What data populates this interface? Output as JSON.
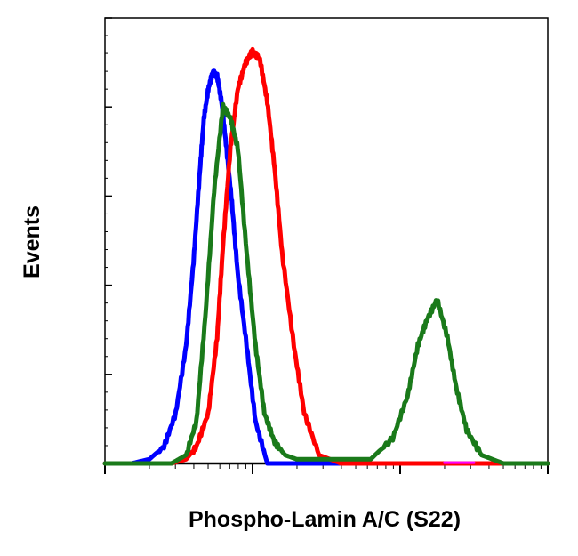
{
  "chart_data": {
    "type": "line",
    "xlabel": "Phospho-Lamin A/C (S22)",
    "ylabel": "Events",
    "x_scale": "log",
    "x_decades": 3,
    "y_major_ticks": 5,
    "grid": false,
    "legend": "none",
    "series": [
      {
        "color": "#0000ff",
        "x": [
          0.0,
          0.18,
          0.3,
          0.4,
          0.48,
          0.55,
          0.6,
          0.64,
          0.67,
          0.7,
          0.73,
          0.76,
          0.79,
          0.82,
          0.86,
          0.9,
          0.96,
          1.02,
          1.1,
          1.25,
          1.5,
          3.0
        ],
        "y": [
          0.0,
          0.0,
          0.01,
          0.04,
          0.12,
          0.28,
          0.48,
          0.68,
          0.82,
          0.89,
          0.93,
          0.92,
          0.86,
          0.76,
          0.62,
          0.45,
          0.28,
          0.1,
          0.0,
          0.0,
          0.0,
          0.0
        ]
      },
      {
        "color": "#ff0000",
        "x": [
          0.0,
          0.45,
          0.55,
          0.62,
          0.7,
          0.76,
          0.8,
          0.85,
          0.9,
          0.95,
          1.0,
          1.05,
          1.1,
          1.15,
          1.2,
          1.28,
          1.35,
          1.45,
          1.6,
          2.5,
          3.0
        ],
        "y": [
          0.0,
          0.0,
          0.01,
          0.04,
          0.12,
          0.3,
          0.52,
          0.75,
          0.89,
          0.95,
          0.98,
          0.96,
          0.86,
          0.7,
          0.5,
          0.28,
          0.12,
          0.02,
          0.0,
          0.0,
          0.0
        ]
      },
      {
        "color": "#1a7a1a",
        "x": [
          0.0,
          0.45,
          0.55,
          0.62,
          0.68,
          0.74,
          0.8,
          0.85,
          0.9,
          0.96,
          1.02,
          1.08,
          1.15,
          1.22,
          1.3,
          1.4,
          1.55,
          1.8,
          1.95,
          2.05,
          2.12,
          2.18,
          2.25,
          2.32,
          2.38,
          2.45,
          2.55,
          2.7,
          3.0
        ],
        "y": [
          0.0,
          0.0,
          0.02,
          0.1,
          0.35,
          0.65,
          0.85,
          0.82,
          0.75,
          0.5,
          0.28,
          0.12,
          0.05,
          0.02,
          0.01,
          0.01,
          0.01,
          0.01,
          0.06,
          0.16,
          0.28,
          0.34,
          0.39,
          0.3,
          0.18,
          0.08,
          0.02,
          0.0,
          0.0
        ]
      },
      {
        "color": "#ff00ff",
        "x": [
          2.3,
          2.5
        ],
        "y": [
          0.002,
          0.002
        ]
      }
    ]
  }
}
